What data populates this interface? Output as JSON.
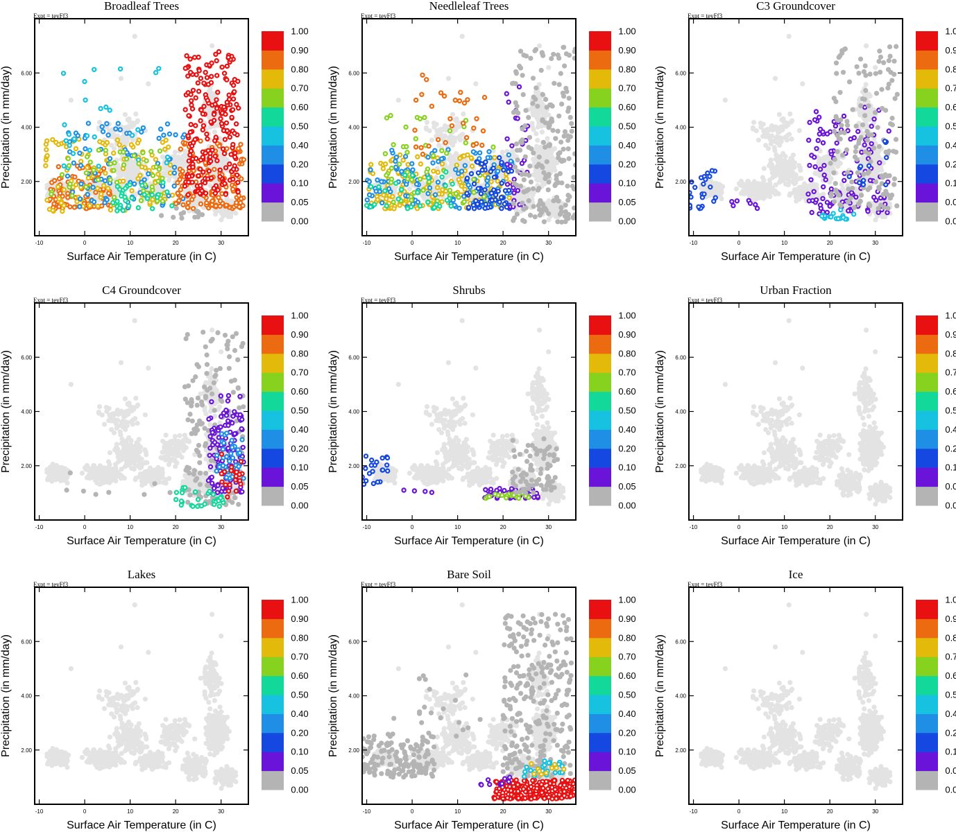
{
  "figure": {
    "xlabel": "Surface Air Temperature (in C)",
    "ylabel": "Precipitation (in mm/day)",
    "expt_label": "Expt = teyFf3"
  },
  "colors": {
    "background_points": "#e3e3e3",
    "zero_points": "#b4b4b4",
    "colorbar": [
      "#b4b4b4",
      "#6a14d9",
      "#1448e0",
      "#1f8fe6",
      "#16c2e0",
      "#12d89a",
      "#86d21f",
      "#e3b90a",
      "#ec6a10",
      "#e81010"
    ]
  },
  "chart_data": [
    {
      "type": "scatter",
      "title": "Broadleaf Trees",
      "xlabel": "Surface Air Temperature (in C)",
      "ylabel": "Precipitation (in mm/day)",
      "xlim": [
        -11,
        36
      ],
      "ylim": [
        0,
        8
      ],
      "xticks": [
        -10,
        0,
        10,
        20,
        30
      ],
      "yticks": [
        "2.00",
        "4.00",
        "6.00"
      ],
      "colorbar": {
        "levels": [
          "0.00",
          "0.05",
          "0.10",
          "0.20",
          "0.40",
          "0.50",
          "0.60",
          "0.70",
          "0.80",
          "0.90",
          "1.00"
        ]
      },
      "clusters": [
        {
          "x": [
            -8,
            6
          ],
          "y": [
            1.0,
            2.6
          ],
          "n": 90,
          "v": 0.8
        },
        {
          "x": [
            -9,
            20
          ],
          "y": [
            0.9,
            3.6
          ],
          "n": 130,
          "v": 0.7
        },
        {
          "x": [
            -5,
            22
          ],
          "y": [
            1.0,
            4.2
          ],
          "n": 90,
          "v": 0.2
        },
        {
          "x": [
            -5,
            20
          ],
          "y": [
            2.5,
            6.3
          ],
          "n": 28,
          "v": 0.4
        },
        {
          "x": [
            -8,
            18
          ],
          "y": [
            1.2,
            3.2
          ],
          "n": 50,
          "v": 0.6
        },
        {
          "x": [
            20,
            35
          ],
          "y": [
            1.0,
            3.5
          ],
          "n": 160,
          "v": 0.8
        },
        {
          "x": [
            22,
            34
          ],
          "y": [
            1.5,
            6.8
          ],
          "n": 230,
          "v": 0.9
        },
        {
          "x": [
            6,
            20
          ],
          "y": [
            0.9,
            2.0
          ],
          "n": 30,
          "v": 0.5
        },
        {
          "x": [
            16,
            26
          ],
          "y": [
            0.6,
            1.2
          ],
          "n": 12,
          "v": 0.0
        }
      ]
    },
    {
      "type": "scatter",
      "title": "Needleleaf Trees",
      "xlabel": "Surface Air Temperature (in C)",
      "ylabel": "Precipitation (in mm/day)",
      "xlim": [
        -11,
        36
      ],
      "ylim": [
        0,
        8
      ],
      "xticks": [
        -10,
        0,
        10,
        20,
        30
      ],
      "yticks": [
        "2.00",
        "4.00",
        "6.00"
      ],
      "colorbar": {
        "levels": [
          "0.00",
          "0.05",
          "0.10",
          "0.20",
          "0.40",
          "0.50",
          "0.60",
          "0.70",
          "0.80",
          "0.90",
          "1.00"
        ]
      },
      "clusters": [
        {
          "x": [
            -10,
            22
          ],
          "y": [
            1.0,
            3.0
          ],
          "n": 170,
          "v": 0.7
        },
        {
          "x": [
            -10,
            22
          ],
          "y": [
            1.0,
            3.2
          ],
          "n": 130,
          "v": 0.2
        },
        {
          "x": [
            -6,
            18
          ],
          "y": [
            1.2,
            4.5
          ],
          "n": 60,
          "v": 0.6
        },
        {
          "x": [
            0,
            16
          ],
          "y": [
            3.0,
            6.0
          ],
          "n": 30,
          "v": 0.8
        },
        {
          "x": [
            12,
            22
          ],
          "y": [
            1.0,
            3.0
          ],
          "n": 70,
          "v": 0.1
        },
        {
          "x": [
            20,
            26
          ],
          "y": [
            1.0,
            5.5
          ],
          "n": 30,
          "v": 0.05
        },
        {
          "x": [
            22,
            36
          ],
          "y": [
            0.5,
            7.0
          ],
          "n": 210,
          "v": 0.0
        },
        {
          "x": [
            -10,
            10
          ],
          "y": [
            1.0,
            2.5
          ],
          "n": 30,
          "v": 0.5
        }
      ]
    },
    {
      "type": "scatter",
      "title": "C3 Groundcover",
      "xlabel": "Surface Air Temperature (in C)",
      "ylabel": "Precipitation (in mm/day)",
      "xlim": [
        -11,
        36
      ],
      "ylim": [
        0,
        8
      ],
      "xticks": [
        -10,
        0,
        10,
        20,
        30
      ],
      "yticks": [
        "2.00",
        "4.00",
        "6.00"
      ],
      "colorbar": {
        "levels": [
          "0.00",
          "0.05",
          "0.10",
          "0.20",
          "0.40",
          "0.50",
          "0.60",
          "0.70",
          "0.80",
          "0.90",
          "1.00"
        ]
      },
      "clusters": [
        {
          "x": [
            -11,
            -5
          ],
          "y": [
            1.0,
            2.4
          ],
          "n": 26,
          "v": 0.1
        },
        {
          "x": [
            -2,
            5
          ],
          "y": [
            1.0,
            1.3
          ],
          "n": 7,
          "v": 0.05
        },
        {
          "x": [
            15,
            33
          ],
          "y": [
            0.8,
            4.8
          ],
          "n": 120,
          "v": 0.05
        },
        {
          "x": [
            18,
            26
          ],
          "y": [
            0.6,
            1.0
          ],
          "n": 18,
          "v": 0.4
        },
        {
          "x": [
            20,
            35
          ],
          "y": [
            1.0,
            7.0
          ],
          "n": 150,
          "v": 0.0
        },
        {
          "x": [
            24,
            33
          ],
          "y": [
            1.8,
            3.5
          ],
          "n": 12,
          "v": 0.1
        }
      ]
    },
    {
      "type": "scatter",
      "title": "C4 Groundcover",
      "xlabel": "Surface Air Temperature (in C)",
      "ylabel": "Precipitation (in mm/day)",
      "xlim": [
        -11,
        36
      ],
      "ylim": [
        0,
        8
      ],
      "xticks": [
        -10,
        0,
        10,
        20,
        30
      ],
      "yticks": [
        "2.00",
        "4.00",
        "6.00"
      ],
      "colorbar": {
        "levels": [
          "0.00",
          "0.05",
          "0.10",
          "0.20",
          "0.40",
          "0.50",
          "0.60",
          "0.70",
          "0.80",
          "0.90",
          "1.00"
        ]
      },
      "clusters": [
        {
          "x": [
            22,
            35
          ],
          "y": [
            0.5,
            7.0
          ],
          "n": 180,
          "v": 0.0
        },
        {
          "x": [
            27,
            35
          ],
          "y": [
            1.0,
            4.6
          ],
          "n": 110,
          "v": 0.05
        },
        {
          "x": [
            29,
            35
          ],
          "y": [
            1.5,
            3.2
          ],
          "n": 40,
          "v": 0.2
        },
        {
          "x": [
            20,
            31
          ],
          "y": [
            0.5,
            1.2
          ],
          "n": 30,
          "v": 0.5
        },
        {
          "x": [
            30,
            35
          ],
          "y": [
            0.8,
            2.5
          ],
          "n": 20,
          "v": 0.9
        },
        {
          "x": [
            -8,
            20
          ],
          "y": [
            0.9,
            1.8
          ],
          "n": 8,
          "v": 0.0
        }
      ]
    },
    {
      "type": "scatter",
      "title": "Shrubs",
      "xlabel": "Surface Air Temperature (in C)",
      "ylabel": "Precipitation (in mm/day)",
      "xlim": [
        -11,
        36
      ],
      "ylim": [
        0,
        8
      ],
      "xticks": [
        -10,
        0,
        10,
        20,
        30
      ],
      "yticks": [
        "2.00",
        "4.00",
        "6.00"
      ],
      "colorbar": {
        "levels": [
          "0.00",
          "0.05",
          "0.10",
          "0.20",
          "0.40",
          "0.50",
          "0.60",
          "0.70",
          "0.80",
          "0.90",
          "1.00"
        ]
      },
      "clusters": [
        {
          "x": [
            -11,
            -5
          ],
          "y": [
            1.3,
            2.4
          ],
          "n": 22,
          "v": 0.1
        },
        {
          "x": [
            -2,
            5
          ],
          "y": [
            0.9,
            1.1
          ],
          "n": 4,
          "v": 0.05
        },
        {
          "x": [
            16,
            28
          ],
          "y": [
            0.8,
            1.2
          ],
          "n": 50,
          "v": 0.05
        },
        {
          "x": [
            16,
            26
          ],
          "y": [
            0.8,
            1.0
          ],
          "n": 22,
          "v": 0.6
        },
        {
          "x": [
            22,
            32
          ],
          "y": [
            1.0,
            3.0
          ],
          "n": 80,
          "v": 0.0
        }
      ]
    },
    {
      "type": "scatter",
      "title": "Urban Fraction",
      "xlabel": "Surface Air Temperature (in C)",
      "ylabel": "Precipitation (in mm/day)",
      "xlim": [
        -11,
        36
      ],
      "ylim": [
        0,
        8
      ],
      "xticks": [
        -10,
        0,
        10,
        20,
        30
      ],
      "yticks": [
        "2.00",
        "4.00",
        "6.00"
      ],
      "colorbar": {
        "levels": [
          "0.00",
          "0.05",
          "0.10",
          "0.20",
          "0.40",
          "0.50",
          "0.60",
          "0.70",
          "0.80",
          "0.90",
          "1.00"
        ]
      },
      "clusters": []
    },
    {
      "type": "scatter",
      "title": "Lakes",
      "xlabel": "Surface Air Temperature (in C)",
      "ylabel": "Precipitation (in mm/day)",
      "xlim": [
        -11,
        36
      ],
      "ylim": [
        0,
        8
      ],
      "xticks": [
        -10,
        0,
        10,
        20,
        30
      ],
      "yticks": [
        "2.00",
        "4.00",
        "6.00"
      ],
      "colorbar": {
        "levels": [
          "0.00",
          "0.05",
          "0.10",
          "0.20",
          "0.40",
          "0.50",
          "0.60",
          "0.70",
          "0.80",
          "0.90",
          "1.00"
        ]
      },
      "clusters": []
    },
    {
      "type": "scatter",
      "title": "Bare Soil",
      "xlabel": "Surface Air Temperature (in C)",
      "ylabel": "Precipitation (in mm/day)",
      "xlim": [
        -11,
        36
      ],
      "ylim": [
        0,
        8
      ],
      "xticks": [
        -10,
        0,
        10,
        20,
        30
      ],
      "yticks": [
        "2.00",
        "4.00",
        "6.00"
      ],
      "colorbar": {
        "levels": [
          "0.00",
          "0.05",
          "0.10",
          "0.20",
          "0.40",
          "0.50",
          "0.60",
          "0.70",
          "0.80",
          "0.90",
          "1.00"
        ]
      },
      "clusters": [
        {
          "x": [
            -11,
            5
          ],
          "y": [
            1.0,
            2.6
          ],
          "n": 150,
          "v": 0.0
        },
        {
          "x": [
            -5,
            15
          ],
          "y": [
            2.5,
            5.0
          ],
          "n": 20,
          "v": 0.0
        },
        {
          "x": [
            20,
            35
          ],
          "y": [
            1.0,
            7.0
          ],
          "n": 280,
          "v": 0.0
        },
        {
          "x": [
            18,
            36
          ],
          "y": [
            0.2,
            0.9
          ],
          "n": 260,
          "v": 0.9
        },
        {
          "x": [
            14,
            22
          ],
          "y": [
            0.7,
            1.0
          ],
          "n": 10,
          "v": 0.05
        },
        {
          "x": [
            24,
            33
          ],
          "y": [
            1.0,
            1.6
          ],
          "n": 25,
          "v": 0.4
        },
        {
          "x": [
            26,
            34
          ],
          "y": [
            1.1,
            1.5
          ],
          "n": 10,
          "v": 0.7
        }
      ]
    },
    {
      "type": "scatter",
      "title": "Ice",
      "xlabel": "Surface Air Temperature (in C)",
      "ylabel": "Precipitation (in mm/day)",
      "xlim": [
        -11,
        36
      ],
      "ylim": [
        0,
        8
      ],
      "xticks": [
        -10,
        0,
        10,
        20,
        30
      ],
      "yticks": [
        "2.00",
        "4.00",
        "6.00"
      ],
      "colorbar": {
        "levels": [
          "0.00",
          "0.05",
          "0.10",
          "0.20",
          "0.40",
          "0.50",
          "0.60",
          "0.70",
          "0.80",
          "0.90",
          "1.00"
        ]
      },
      "clusters": []
    }
  ]
}
